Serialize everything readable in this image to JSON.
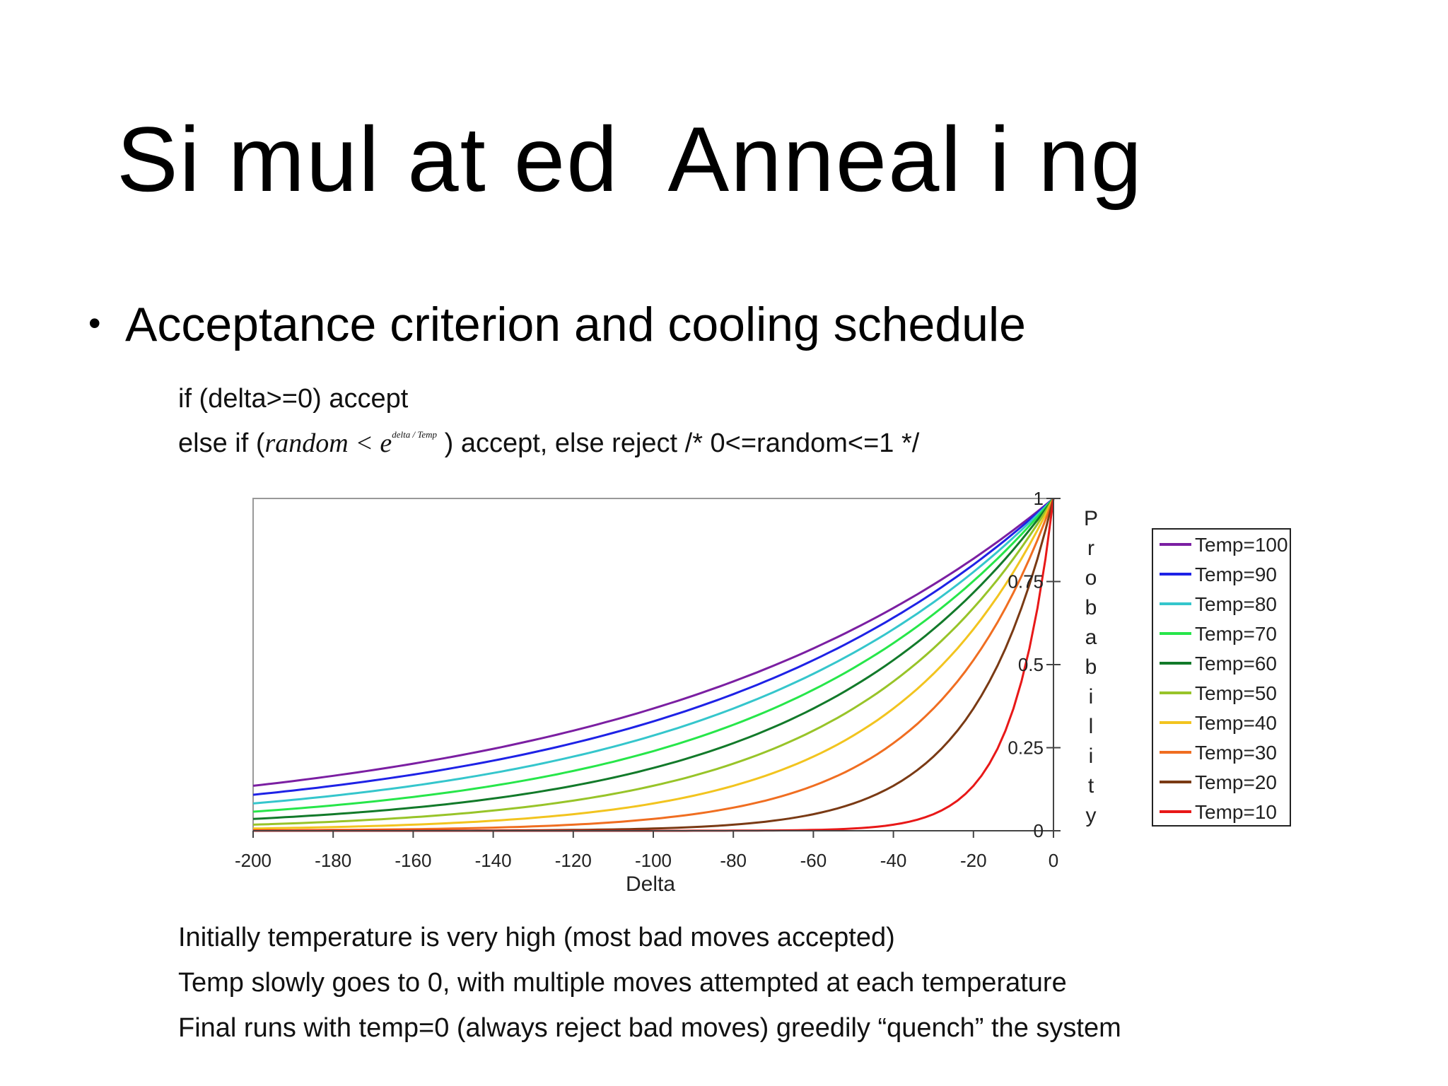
{
  "slide": {
    "title": "Si mul at ed  Anneal i ng",
    "bullet": "Acceptance criterion and cooling schedule",
    "code_line1": "if (delta>=0) accept",
    "code_line2_prefix": "else if (",
    "code_line2_math": "random < e",
    "code_line2_math_exp": "delta / Temp",
    "code_line2_suffix": " ) accept, else reject /* 0<=random<=1 */",
    "notes": [
      "Initially temperature is very high (most bad moves accepted)",
      "Temp slowly goes to 0, with multiple moves attempted at each temperature",
      "Final runs with temp=0 (always reject bad moves) greedily “quench” the system"
    ]
  },
  "chart_data": {
    "type": "line",
    "function": "y = exp(x / Temp)",
    "xlabel": "Delta",
    "ylabel": "Probability",
    "xlim": [
      -200,
      0
    ],
    "ylim": [
      0,
      1
    ],
    "x_ticks": [
      "-200",
      "-180",
      "-160",
      "-140",
      "-120",
      "-100",
      "-80",
      "-60",
      "-40",
      "-20",
      "0"
    ],
    "y_ticks": [
      "0",
      "0.25",
      "0.5",
      "0.75",
      "1"
    ],
    "grid": false,
    "legend_position": "right",
    "x": [
      -200,
      -190,
      -180,
      -170,
      -160,
      -150,
      -140,
      -130,
      -120,
      -110,
      -100,
      -90,
      -80,
      -70,
      -60,
      -50,
      -40,
      -35,
      -30,
      -25,
      -20,
      -15,
      -10,
      -5,
      0
    ],
    "series": [
      {
        "name": "Temp=100",
        "temp": 100,
        "color": "#7B1FA2"
      },
      {
        "name": "Temp=90",
        "temp": 90,
        "color": "#1E22E6"
      },
      {
        "name": "Temp=80",
        "temp": 80,
        "color": "#35C6CC"
      },
      {
        "name": "Temp=70",
        "temp": 70,
        "color": "#27E64A"
      },
      {
        "name": "Temp=60",
        "temp": 60,
        "color": "#127A2A"
      },
      {
        "name": "Temp=50",
        "temp": 50,
        "color": "#98C429"
      },
      {
        "name": "Temp=40",
        "temp": 40,
        "color": "#F2C41F"
      },
      {
        "name": "Temp=30",
        "temp": 30,
        "color": "#F06E21"
      },
      {
        "name": "Temp=20",
        "temp": 20,
        "color": "#7A3A14"
      },
      {
        "name": "Temp=10",
        "temp": 10,
        "color": "#E81818"
      }
    ]
  }
}
